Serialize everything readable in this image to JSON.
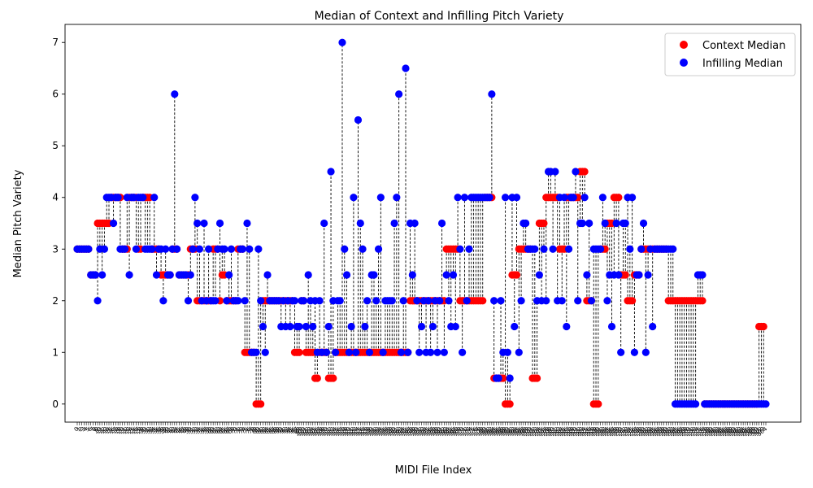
{
  "chart_data": {
    "type": "scatter",
    "title": "Median of Context and Infilling Pitch Variety",
    "xlabel": "MIDI File Index",
    "ylabel": "Median Pitch Variety",
    "ylim": [
      -0.35,
      7.35
    ],
    "yticks": [
      0,
      1,
      2,
      3,
      4,
      5,
      6,
      7
    ],
    "grid": false,
    "legend": {
      "placement": "top-right",
      "entries": [
        {
          "label": "Context Median",
          "color": "#ff0000"
        },
        {
          "label": "Infilling Median",
          "color": "#0000ff"
        }
      ]
    },
    "connector_style": "dashed-black",
    "x_tick_labels_note": "one rotated tick label per file index (illegible, overlapping)",
    "series": [
      {
        "name": "Context Median",
        "color": "#ff0000",
        "values": [
          3,
          3,
          3,
          3,
          3,
          3,
          2.5,
          2.5,
          2.5,
          3.5,
          3.5,
          3.5,
          3.5,
          3.5,
          3.5,
          4,
          4,
          4,
          4,
          4,
          3,
          3,
          3,
          4,
          4,
          4,
          4,
          3,
          3,
          4,
          4,
          4,
          4,
          3,
          3,
          3,
          3,
          2.5,
          2.5,
          2.5,
          2.5,
          2.5,
          3,
          3,
          3,
          2.5,
          2.5,
          2.5,
          2.5,
          2.5,
          3,
          3,
          3,
          2,
          2,
          2,
          2,
          2,
          2,
          2,
          3,
          3,
          3,
          2,
          2.5,
          2.5,
          2,
          2,
          2,
          2,
          2,
          3,
          3,
          3,
          1,
          1,
          1,
          1,
          1,
          0,
          0,
          0,
          2,
          2,
          2,
          2,
          2,
          2,
          2,
          2,
          2,
          2,
          2,
          2,
          2,
          2,
          1,
          1,
          1,
          2,
          2,
          1,
          1,
          1,
          1,
          0.5,
          0.5,
          1,
          1,
          1,
          1,
          0.5,
          0.5,
          0.5,
          1,
          1,
          1,
          1,
          1,
          1,
          1,
          1,
          1,
          1,
          1,
          1,
          1,
          1,
          1,
          1,
          1,
          1,
          1,
          1,
          1,
          1,
          1,
          1,
          1,
          1,
          1,
          1,
          1,
          1,
          1,
          1,
          1,
          2,
          2,
          2,
          2,
          2,
          2,
          2,
          2,
          2,
          2,
          2,
          2,
          2,
          2,
          2,
          2,
          3,
          3,
          3,
          3,
          3,
          3,
          2,
          2,
          2,
          2,
          2,
          2,
          2,
          2,
          2,
          2,
          2,
          4,
          4,
          4,
          4,
          0.5,
          0.5,
          0.5,
          0.5,
          0.5,
          0,
          0,
          0,
          2.5,
          2.5,
          2.5,
          3,
          3,
          3,
          3,
          3,
          3,
          0.5,
          0.5,
          0.5,
          3.5,
          3.5,
          3.5,
          4,
          4,
          4,
          4,
          4,
          4,
          3,
          3,
          3,
          4,
          4,
          4,
          4,
          4,
          4,
          4.5,
          4.5,
          4.5,
          2,
          2,
          2,
          0,
          0,
          0,
          3,
          3,
          3,
          3.5,
          3.5,
          3.5,
          4,
          4,
          4,
          2.5,
          2.5,
          2.5,
          2,
          2,
          2,
          2.5,
          2.5,
          2.5,
          3,
          3,
          3,
          3,
          3,
          3,
          3,
          3,
          3,
          3,
          3,
          3,
          2,
          2,
          2,
          2,
          2,
          2,
          2,
          2,
          2,
          2,
          2,
          2,
          2,
          2,
          2,
          2,
          0,
          0,
          0,
          0,
          0,
          0,
          0,
          0,
          0,
          0,
          0,
          0,
          0,
          0,
          0,
          0,
          0,
          0,
          0,
          0,
          0,
          0,
          0,
          0,
          1.5,
          1.5,
          1.5
        ]
      },
      {
        "name": "Infilling Median",
        "color": "#0000ff",
        "values": [
          3,
          3,
          3,
          3,
          3,
          3,
          2.5,
          2.5,
          2.5,
          2,
          3,
          2.5,
          3,
          4,
          4,
          4,
          3.5,
          4,
          4,
          3,
          3,
          3,
          4,
          2.5,
          4,
          4,
          3,
          4,
          4,
          4,
          3,
          3,
          3,
          3,
          4,
          2.5,
          3,
          3,
          2,
          3,
          2.5,
          2.5,
          3,
          6,
          3,
          2.5,
          2.5,
          2.5,
          2.5,
          2,
          2.5,
          3,
          4,
          3.5,
          3,
          2,
          3.5,
          2,
          3,
          2,
          2,
          2,
          3,
          3.5,
          3,
          3,
          2,
          2.5,
          3,
          2,
          2,
          2,
          3,
          3,
          2,
          3.5,
          3,
          1,
          1,
          1,
          3,
          2,
          1.5,
          1,
          2.5,
          2,
          2,
          2,
          2,
          2,
          1.5,
          2,
          1.5,
          2,
          1.5,
          2,
          2,
          1.5,
          1.5,
          2,
          2,
          1.5,
          2.5,
          2,
          1.5,
          2,
          1,
          2,
          1,
          3.5,
          1,
          1.5,
          4.5,
          2,
          1,
          2,
          2,
          7,
          3,
          2.5,
          1,
          1.5,
          4,
          1,
          5.5,
          3.5,
          3,
          1.5,
          2,
          1,
          2.5,
          2.5,
          2,
          3,
          4,
          1,
          2,
          2,
          2,
          2,
          3.5,
          4,
          6,
          1,
          2,
          6.5,
          1,
          3.5,
          2.5,
          3.5,
          2,
          1,
          1.5,
          2,
          1,
          2,
          1,
          1.5,
          2,
          1,
          2,
          3.5,
          1,
          2.5,
          2,
          1.5,
          2.5,
          1.5,
          4,
          3,
          1,
          4,
          2,
          3,
          4,
          4,
          4,
          4,
          4,
          4,
          4,
          4,
          4,
          6,
          2,
          0.5,
          0.5,
          2,
          1,
          4,
          1,
          0.5,
          4,
          1.5,
          4,
          1,
          2,
          3.5,
          3.5,
          3,
          3,
          3,
          3,
          2,
          2.5,
          2,
          3,
          2,
          4.5,
          4.5,
          3,
          4.5,
          2,
          4,
          2,
          4,
          1.5,
          3,
          4,
          4,
          4.5,
          2,
          3.5,
          3.5,
          4,
          2.5,
          3.5,
          2,
          3,
          3,
          3,
          3,
          4,
          3.5,
          2,
          2.5,
          1.5,
          2.5,
          3.5,
          2.5,
          1,
          3.5,
          3.5,
          4,
          3,
          4,
          1,
          2.5,
          2.5,
          3,
          3.5,
          1,
          2.5,
          3,
          1.5,
          3,
          3,
          3,
          3,
          3,
          3,
          3,
          3,
          3,
          0,
          0,
          0,
          0,
          0,
          0,
          0,
          0,
          0,
          0,
          2.5,
          2.5,
          2.5,
          0,
          0,
          0,
          0,
          0,
          0,
          0,
          0,
          0,
          0,
          0,
          0,
          0,
          0,
          0,
          0,
          0,
          0,
          0,
          0,
          0,
          0,
          0,
          0,
          0,
          0,
          0,
          0
        ]
      }
    ]
  }
}
